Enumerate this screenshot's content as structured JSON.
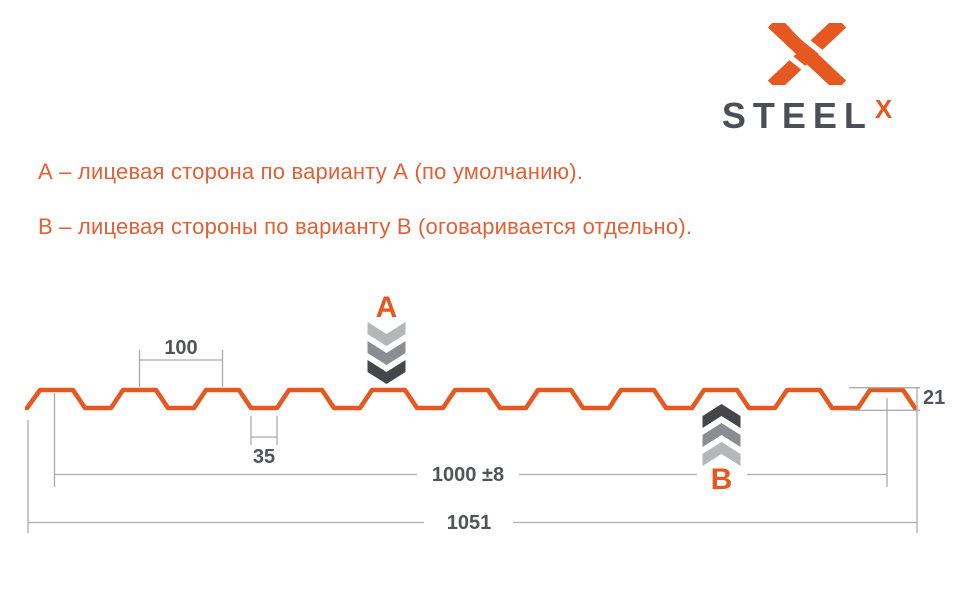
{
  "logo": {
    "brand": "STEEL",
    "brand_sup": "X"
  },
  "notes": {
    "line_a": "А – лицевая сторона по варианту А (по умолчанию).",
    "line_b": "В – лицевая стороны по варианту В (оговаривается отдельно)."
  },
  "diagram": {
    "label_a": "A",
    "label_b": "B",
    "dims": {
      "pitch": "100",
      "valley_width": "35",
      "profile_height": "21",
      "working_width": "1000 ±8",
      "overall_width": "1051"
    }
  },
  "colors": {
    "accent": "#e5581f",
    "note_text": "#e45f33",
    "brand_text": "#4c4f55",
    "dim_line": "#a9abae",
    "dim_text": "#51545b",
    "chevron_light": "#b5b6b8",
    "chevron_mid": "#8b8d90",
    "chevron_dark": "#454649"
  }
}
